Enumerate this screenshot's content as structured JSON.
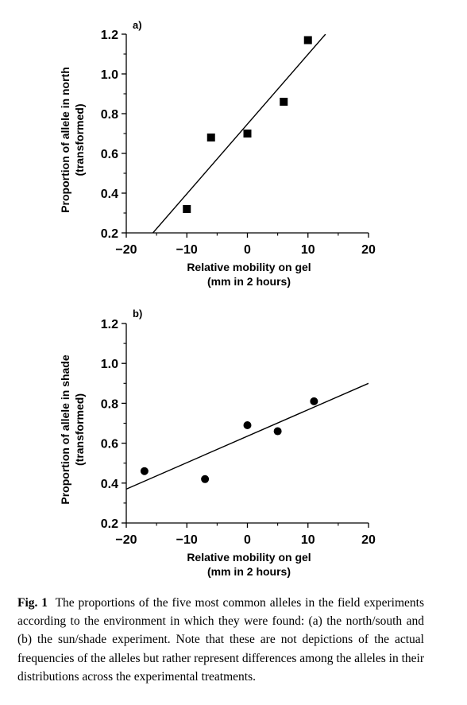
{
  "caption": {
    "label": "Fig. 1",
    "text": "The proportions of the five most common alleles in the field experiments according to the environment in which they were found: (a) the north/south and (b) the sun/shade experiment. Note that these are not depictions of the actual frequencies of the alleles but rather represent differences among the alleles in their distributions across the experimental treatments."
  },
  "chart_data": [
    {
      "type": "scatter",
      "panel_label": "a)",
      "xlabel": "Relative mobility on gel",
      "xlabel2": "(mm in 2 hours)",
      "ylabel": "Proportion of allele in north",
      "ylabel2": "(transformed)",
      "xlim": [
        -20,
        20
      ],
      "ylim": [
        0.2,
        1.2
      ],
      "xticks": [
        -20,
        -10,
        0,
        10,
        20
      ],
      "xtick_labels": [
        "−20",
        "−10",
        "0",
        "10",
        "20"
      ],
      "yticks": [
        0.2,
        0.4,
        0.6,
        0.8,
        1.0,
        1.2
      ],
      "ytick_labels": [
        "0.2",
        "0.4",
        "0.6",
        "0.8",
        "1.0",
        "1.2"
      ],
      "marker": "square",
      "points": [
        {
          "x": -10,
          "y": 0.32
        },
        {
          "x": -6,
          "y": 0.68
        },
        {
          "x": 0,
          "y": 0.7
        },
        {
          "x": 6,
          "y": 0.86
        },
        {
          "x": 10,
          "y": 1.17
        }
      ],
      "fit_line": {
        "x": [
          -15.6,
          12.9
        ],
        "y": [
          0.2,
          1.2
        ]
      },
      "grid": false
    },
    {
      "type": "scatter",
      "panel_label": "b)",
      "xlabel": "Relative mobility on gel",
      "xlabel2": "(mm in 2 hours)",
      "ylabel": "Proportion of allele in shade",
      "ylabel2": "(transformed)",
      "xlim": [
        -20,
        20
      ],
      "ylim": [
        0.2,
        1.2
      ],
      "xticks": [
        -20,
        -10,
        0,
        10,
        20
      ],
      "xtick_labels": [
        "−20",
        "−10",
        "0",
        "10",
        "20"
      ],
      "yticks": [
        0.2,
        0.4,
        0.6,
        0.8,
        1.0,
        1.2
      ],
      "ytick_labels": [
        "0.2",
        "0.4",
        "0.6",
        "0.8",
        "1.0",
        "1.2"
      ],
      "marker": "circle",
      "points": [
        {
          "x": -17,
          "y": 0.46
        },
        {
          "x": -7,
          "y": 0.42
        },
        {
          "x": 0,
          "y": 0.69
        },
        {
          "x": 5,
          "y": 0.66
        },
        {
          "x": 11,
          "y": 0.81
        }
      ],
      "fit_line": {
        "x": [
          -20,
          20
        ],
        "y": [
          0.37,
          0.9
        ]
      },
      "grid": false
    }
  ]
}
